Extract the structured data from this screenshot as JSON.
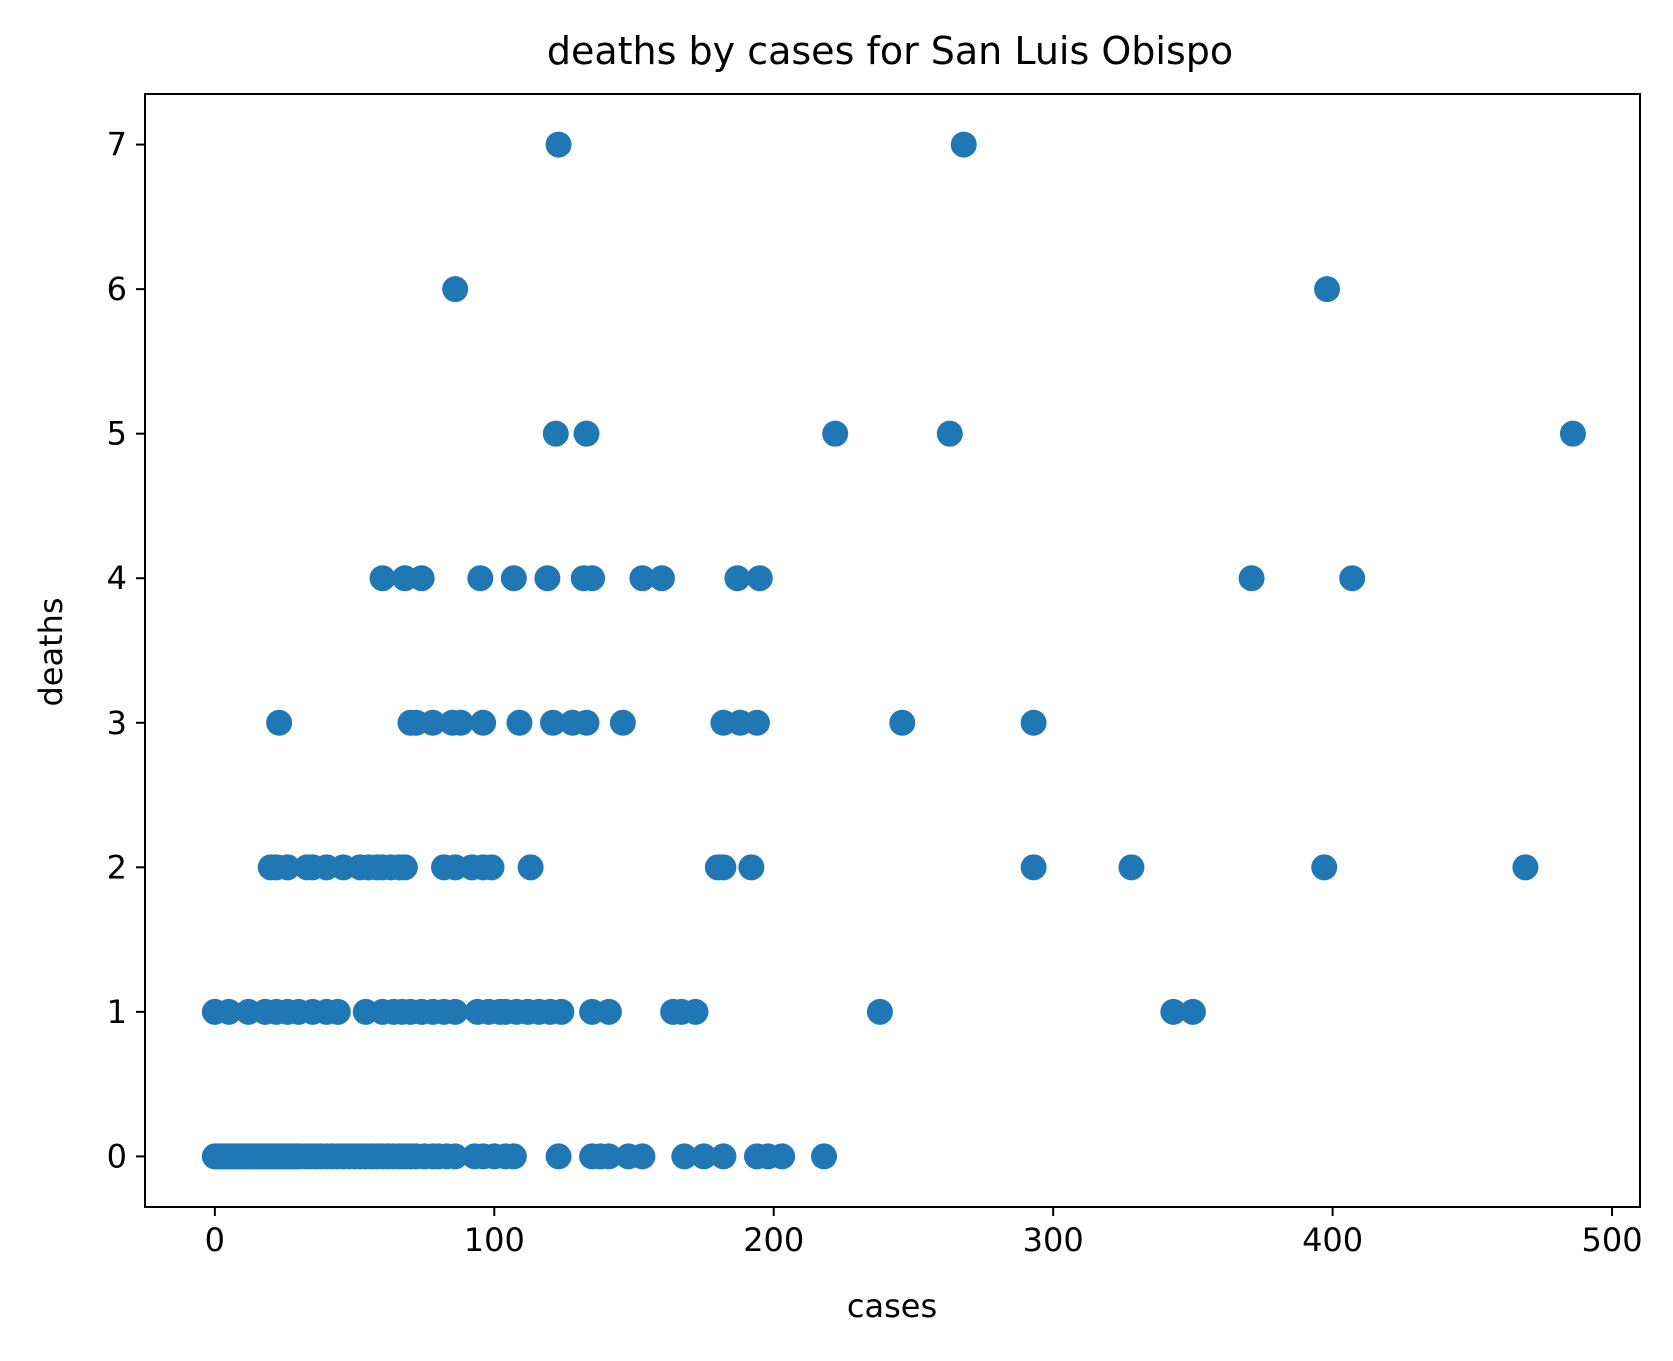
{
  "chart_data": {
    "type": "scatter",
    "title": "deaths by cases for San Luis Obispo",
    "xlabel": "cases",
    "ylabel": "deaths",
    "xlim": [
      -25,
      510
    ],
    "ylim": [
      -0.35,
      7.35
    ],
    "xticks": [
      0,
      100,
      200,
      300,
      400,
      500
    ],
    "yticks": [
      0,
      1,
      2,
      3,
      4,
      5,
      6,
      7
    ],
    "grid": false,
    "legend": "none",
    "marker_color": "#1f77b4",
    "series": [
      {
        "x": [
          0,
          1,
          2,
          3,
          4,
          5,
          6,
          7,
          8,
          9,
          10,
          11,
          12,
          13,
          14,
          15,
          16,
          17,
          18,
          19,
          20,
          21,
          22,
          23,
          24,
          25,
          26,
          27,
          28,
          29,
          30,
          32,
          34,
          36,
          38,
          40,
          42,
          44,
          46,
          48,
          50,
          52,
          54,
          56,
          58,
          60,
          62,
          64,
          66,
          68,
          70,
          72,
          75,
          78,
          80,
          83,
          86,
          93,
          96,
          100,
          104,
          107,
          123,
          135,
          138,
          141,
          148,
          153,
          168,
          175,
          182,
          194,
          198,
          203,
          218,
          0,
          5,
          12,
          18,
          22,
          26,
          30,
          35,
          40,
          44,
          54,
          60,
          64,
          67,
          70,
          74,
          78,
          82,
          86,
          94,
          98,
          102,
          104,
          108,
          112,
          116,
          120,
          124,
          135,
          141,
          164,
          167,
          172,
          238,
          343,
          350,
          20,
          22,
          26,
          33,
          35,
          40,
          46,
          52,
          55,
          58,
          60,
          63,
          66,
          68,
          82,
          86,
          92,
          96,
          99,
          113,
          180,
          182,
          192,
          293,
          328,
          397,
          469,
          23,
          70,
          72,
          78,
          85,
          88,
          96,
          109,
          121,
          128,
          133,
          146,
          182,
          188,
          194,
          246,
          293,
          60,
          68,
          74,
          95,
          107,
          119,
          132,
          135,
          153,
          160,
          187,
          195,
          371,
          407,
          122,
          133,
          222,
          263,
          486,
          86,
          398,
          123,
          268
        ],
        "y": [
          0,
          0,
          0,
          0,
          0,
          0,
          0,
          0,
          0,
          0,
          0,
          0,
          0,
          0,
          0,
          0,
          0,
          0,
          0,
          0,
          0,
          0,
          0,
          0,
          0,
          0,
          0,
          0,
          0,
          0,
          0,
          0,
          0,
          0,
          0,
          0,
          0,
          0,
          0,
          0,
          0,
          0,
          0,
          0,
          0,
          0,
          0,
          0,
          0,
          0,
          0,
          0,
          0,
          0,
          0,
          0,
          0,
          0,
          0,
          0,
          0,
          0,
          0,
          0,
          0,
          0,
          0,
          0,
          0,
          0,
          0,
          0,
          0,
          0,
          0,
          1,
          1,
          1,
          1,
          1,
          1,
          1,
          1,
          1,
          1,
          1,
          1,
          1,
          1,
          1,
          1,
          1,
          1,
          1,
          1,
          1,
          1,
          1,
          1,
          1,
          1,
          1,
          1,
          1,
          1,
          1,
          1,
          1,
          1,
          1,
          1,
          2,
          2,
          2,
          2,
          2,
          2,
          2,
          2,
          2,
          2,
          2,
          2,
          2,
          2,
          2,
          2,
          2,
          2,
          2,
          2,
          2,
          2,
          2,
          2,
          2,
          2,
          2,
          3,
          3,
          3,
          3,
          3,
          3,
          3,
          3,
          3,
          3,
          3,
          3,
          3,
          3,
          3,
          3,
          3,
          4,
          4,
          4,
          4,
          4,
          4,
          4,
          4,
          4,
          4,
          4,
          4,
          4,
          4,
          5,
          5,
          5,
          5,
          5,
          6,
          6,
          7,
          7
        ]
      }
    ]
  }
}
